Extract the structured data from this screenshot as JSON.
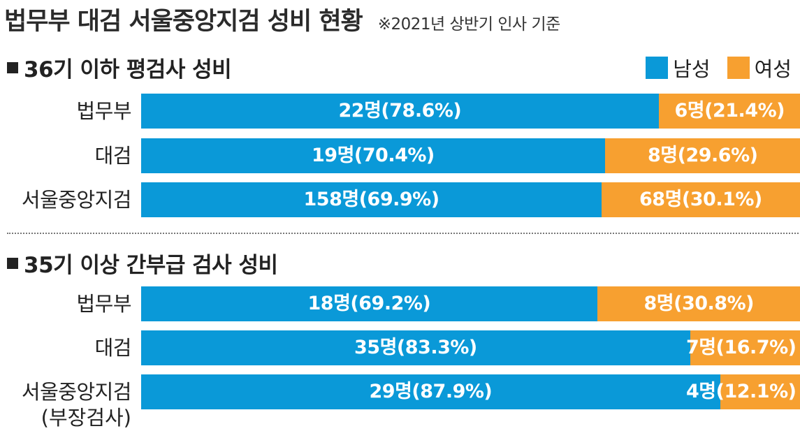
{
  "title": "법무부 대검 서울중앙지검 성비 현황",
  "note": "※2021년 상반기 인사 기준",
  "legend": {
    "male": "남성",
    "female": "여성"
  },
  "colors": {
    "male": "#0a99d8",
    "female": "#f7a030"
  },
  "chart_data": [
    {
      "type": "bar",
      "orientation": "horizontal",
      "stacked": true,
      "title": "36기 이하 평검사 성비",
      "categories": [
        "법무부",
        "대검",
        "서울중앙지검"
      ],
      "series": [
        {
          "name": "남성",
          "values": [
            22,
            19,
            158
          ],
          "percents": [
            78.6,
            70.4,
            69.9
          ],
          "labels": [
            "22명(78.6%)",
            "19명(70.4%)",
            "158명(69.9%)"
          ]
        },
        {
          "name": "여성",
          "values": [
            6,
            8,
            68
          ],
          "percents": [
            21.4,
            29.6,
            30.1
          ],
          "labels": [
            "6명(21.4%)",
            "8명(29.6%)",
            "68명(30.1%)"
          ]
        }
      ],
      "legend": "top-right"
    },
    {
      "type": "bar",
      "orientation": "horizontal",
      "stacked": true,
      "title": "35기 이상 간부급 검사 성비",
      "categories": [
        "법무부",
        "대검",
        "서울중앙지검"
      ],
      "category_sublabels": [
        "",
        "",
        "(부장검사)"
      ],
      "series": [
        {
          "name": "남성",
          "values": [
            18,
            35,
            29
          ],
          "percents": [
            69.2,
            83.3,
            87.9
          ],
          "labels": [
            "18명(69.2%)",
            "35명(83.3%)",
            "29명(87.9%)"
          ]
        },
        {
          "name": "여성",
          "values": [
            8,
            7,
            4
          ],
          "percents": [
            30.8,
            16.7,
            12.1
          ],
          "labels": [
            "8명(30.8%)",
            "7명(16.7%)",
            "4명(12.1%)"
          ]
        }
      ]
    }
  ]
}
